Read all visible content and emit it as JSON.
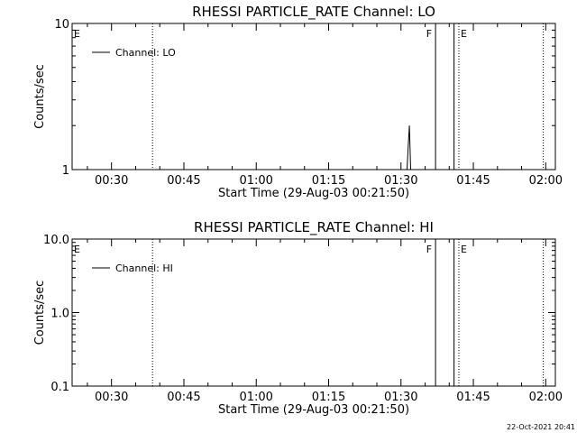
{
  "colors": {
    "background": "#ffffff",
    "foreground": "#000000"
  },
  "footer_timestamp": "22-Oct-2021 20:41",
  "chart_data": [
    {
      "type": "line",
      "title": "RHESSI PARTICLE_RATE Channel: LO",
      "xlabel": "Start Time (29-Aug-03 00:21:50)",
      "ylabel": "Counts/sec",
      "y_scale": "log",
      "ylim": [
        1,
        10
      ],
      "y_ticks": [
        1,
        10
      ],
      "y_tick_labels": [
        "1",
        "10"
      ],
      "xlim": [
        "00:21:50",
        "02:02:00"
      ],
      "x_ticks": [
        "00:30",
        "00:45",
        "01:00",
        "01:15",
        "01:30",
        "01:45",
        "02:00"
      ],
      "x_tick_labels": [
        "00:30",
        "00:45",
        "01:00",
        "01:15",
        "01:30",
        "01:45",
        "02:00"
      ],
      "grid": false,
      "legend_position": "top-left",
      "series": [
        {
          "name": "Channel: LO",
          "color": "#000000",
          "x": [
            "01:31:00",
            "01:31:15",
            "01:31:30",
            "01:31:45",
            "01:32:00",
            "01:32:10",
            "01:37:10",
            "01:37:10",
            "01:41:00",
            "01:41:00"
          ],
          "y": [
            1,
            1,
            1.45,
            2,
            1,
            1,
            1,
            10,
            10,
            1
          ]
        }
      ],
      "annotations": [
        {
          "text": "E",
          "x": "00:21:50",
          "kind": "label"
        },
        {
          "text": "",
          "x": "00:38:30",
          "kind": "dotted-line"
        },
        {
          "text": "F",
          "x": "01:37:10",
          "kind": "label"
        },
        {
          "text": "",
          "x": "01:42:00",
          "kind": "dotted-line"
        },
        {
          "text": "E",
          "x": "01:42:00",
          "kind": "label"
        },
        {
          "text": "",
          "x": "01:59:30",
          "kind": "dotted-line"
        }
      ]
    },
    {
      "type": "line",
      "title": "RHESSI PARTICLE_RATE Channel: HI",
      "xlabel": "Start Time (29-Aug-03 00:21:50)",
      "ylabel": "Counts/sec",
      "y_scale": "log",
      "ylim": [
        0.1,
        10
      ],
      "y_ticks": [
        0.1,
        1,
        10
      ],
      "y_tick_labels": [
        "0.1",
        "1.0",
        "10.0"
      ],
      "xlim": [
        "00:21:50",
        "02:02:00"
      ],
      "x_ticks": [
        "00:30",
        "00:45",
        "01:00",
        "01:15",
        "01:30",
        "01:45",
        "02:00"
      ],
      "x_tick_labels": [
        "00:30",
        "00:45",
        "01:00",
        "01:15",
        "01:30",
        "01:45",
        "02:00"
      ],
      "grid": false,
      "legend_position": "top-left",
      "series": [
        {
          "name": "Channel: HI",
          "color": "#000000",
          "x": [
            "01:37:10",
            "01:37:10",
            "01:41:00",
            "01:41:00"
          ],
          "y": [
            0.1,
            10,
            10,
            0.1
          ]
        }
      ],
      "annotations": [
        {
          "text": "E",
          "x": "00:21:50",
          "kind": "label"
        },
        {
          "text": "",
          "x": "00:38:30",
          "kind": "dotted-line"
        },
        {
          "text": "F",
          "x": "01:37:10",
          "kind": "label"
        },
        {
          "text": "",
          "x": "01:42:00",
          "kind": "dotted-line"
        },
        {
          "text": "E",
          "x": "01:42:00",
          "kind": "label"
        },
        {
          "text": "",
          "x": "01:59:30",
          "kind": "dotted-line"
        }
      ]
    }
  ]
}
